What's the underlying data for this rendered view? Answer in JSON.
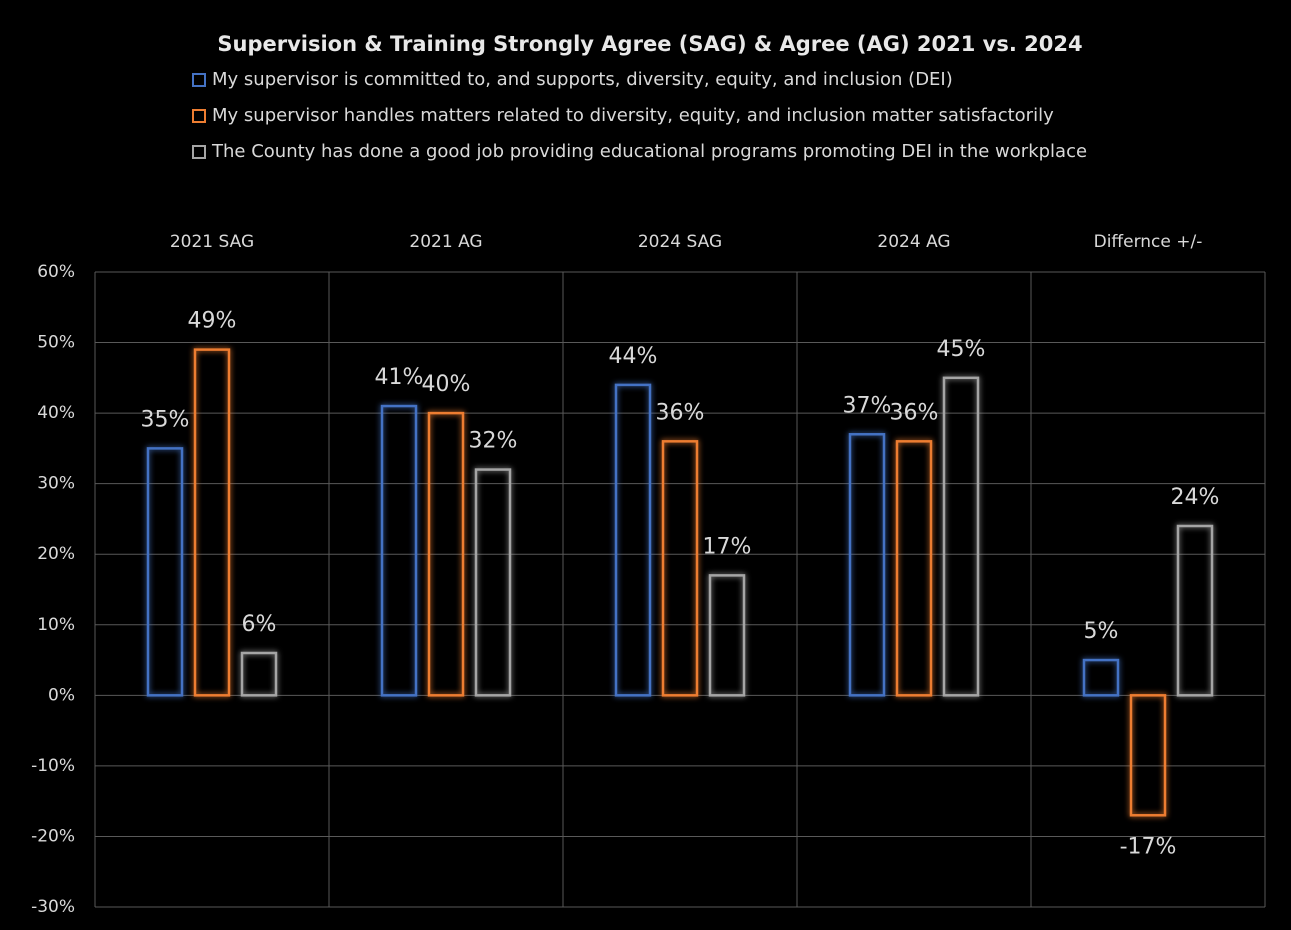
{
  "chart_data": {
    "type": "bar",
    "title": "Supervision & Training Strongly Agree (SAG) & Agree (AG) 2021 vs. 2024",
    "categories": [
      "2021 SAG",
      "2021 AG",
      "2024 SAG",
      "2024 AG",
      "Differnce +/-"
    ],
    "series": [
      {
        "name": "My supervisor is committed to, and supports, diversity, equity, and inclusion (DEI)",
        "color": "#4472c4",
        "values": [
          35,
          41,
          44,
          37,
          5
        ],
        "value_labels": [
          "35%",
          "41%",
          "44%",
          "37%",
          "5%"
        ]
      },
      {
        "name": "My supervisor handles matters related to diversity, equity, and inclusion matter satisfactorily",
        "color": "#ed7d31",
        "values": [
          49,
          40,
          36,
          36,
          -17
        ],
        "value_labels": [
          "49%",
          "40%",
          "36%",
          "36%",
          "-17%"
        ]
      },
      {
        "name": "The County has done a good job providing educational programs promoting DEI in the workplace",
        "color": "#a5a5a5",
        "values": [
          6,
          32,
          17,
          45,
          24
        ],
        "value_labels": [
          "6%",
          "32%",
          "17%",
          "45%",
          "24%"
        ]
      }
    ],
    "ylim": [
      -30,
      60
    ],
    "yticks": [
      {
        "value": -30,
        "label": "-30%"
      },
      {
        "value": -20,
        "label": "-20%"
      },
      {
        "value": -10,
        "label": "-10%"
      },
      {
        "value": 0,
        "label": "0%"
      },
      {
        "value": 10,
        "label": "10%"
      },
      {
        "value": 20,
        "label": "20%"
      },
      {
        "value": 30,
        "label": "30%"
      },
      {
        "value": 40,
        "label": "40%"
      },
      {
        "value": 50,
        "label": "50%"
      },
      {
        "value": 60,
        "label": "60%"
      }
    ],
    "grid": true
  }
}
